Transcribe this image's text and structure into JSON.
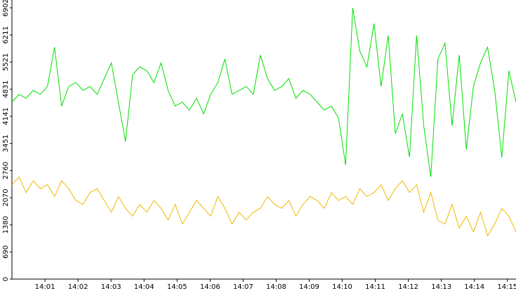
{
  "chart_data": {
    "type": "line",
    "xlim": [
      0,
      15.26
    ],
    "xticks": [
      {
        "value": 1,
        "label": "14:01"
      },
      {
        "value": 2,
        "label": "14:02"
      },
      {
        "value": 3,
        "label": "14:03"
      },
      {
        "value": 4,
        "label": "14:04"
      },
      {
        "value": 5,
        "label": "14:05"
      },
      {
        "value": 6,
        "label": "14:06"
      },
      {
        "value": 7,
        "label": "14:07"
      },
      {
        "value": 8,
        "label": "14:08"
      },
      {
        "value": 9,
        "label": "14:09"
      },
      {
        "value": 10,
        "label": "14:10"
      },
      {
        "value": 11,
        "label": "14:11"
      },
      {
        "value": 12,
        "label": "14:12"
      },
      {
        "value": 13,
        "label": "14:13"
      },
      {
        "value": 14,
        "label": "14:14"
      },
      {
        "value": 15,
        "label": "14:15"
      }
    ],
    "ylim": [
      0,
      7100
    ],
    "yticks": [
      0,
      690,
      1380,
      2070,
      2760,
      3451,
      4141,
      4831,
      5521,
      6211,
      6902
    ],
    "series": [
      {
        "color": "#00e000",
        "values": [
          4500,
          4700,
          4600,
          4800,
          4700,
          4900,
          5900,
          4400,
          4900,
          5000,
          4800,
          4900,
          4700,
          5100,
          5500,
          4500,
          3500,
          5200,
          5400,
          5300,
          5000,
          5500,
          4800,
          4400,
          4500,
          4300,
          4600,
          4200,
          4700,
          5000,
          5600,
          4700,
          4800,
          4900,
          4700,
          5700,
          5100,
          4800,
          4900,
          5100,
          4600,
          4800,
          4700,
          4500,
          4300,
          4400,
          4100,
          2900,
          6900,
          5800,
          5400,
          6500,
          4900,
          6200,
          3700,
          4200,
          3100,
          6200,
          3900,
          2600,
          5600,
          6000,
          3900,
          5700,
          3300,
          4900,
          5500,
          5900,
          4800,
          3100,
          5300,
          4500
        ]
      },
      {
        "color": "#f0b800",
        "values": [
          2400,
          2600,
          2200,
          2500,
          2300,
          2400,
          2100,
          2500,
          2300,
          2000,
          1900,
          2200,
          2300,
          2000,
          1700,
          2100,
          1800,
          1600,
          1900,
          1700,
          2000,
          1800,
          1500,
          1900,
          1400,
          1700,
          2000,
          1800,
          1600,
          2100,
          1800,
          1400,
          1700,
          1500,
          1700,
          1800,
          2100,
          1900,
          1800,
          2000,
          1600,
          1900,
          2100,
          2000,
          1800,
          2200,
          2000,
          2100,
          1900,
          2300,
          2100,
          2200,
          2400,
          2000,
          2300,
          2500,
          2200,
          2400,
          1700,
          2200,
          1500,
          1400,
          1900,
          1300,
          1600,
          1200,
          1700,
          1100,
          1400,
          1800,
          1600,
          1200
        ]
      }
    ]
  }
}
